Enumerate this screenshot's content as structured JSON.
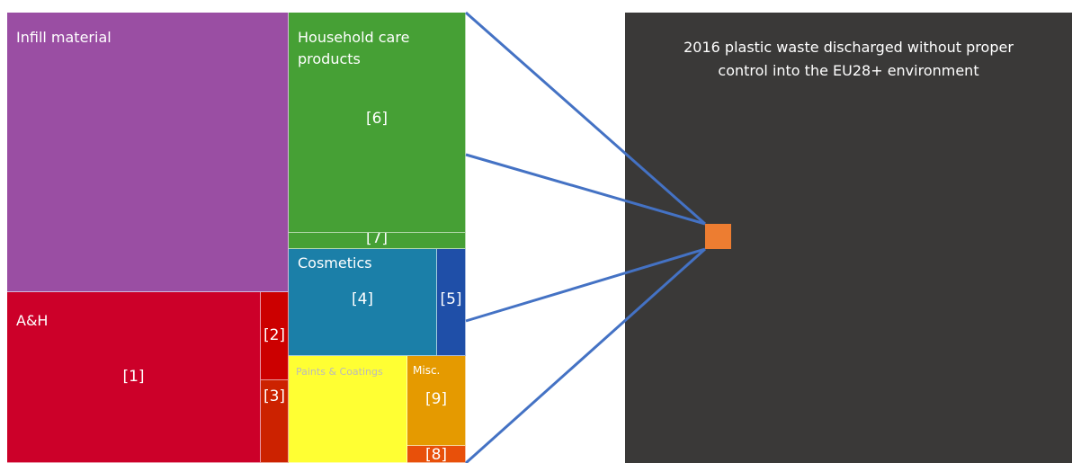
{
  "title": "2016 plastic waste discharged without proper control into the EU28+ environment",
  "nodes": [
    {
      "name": "Infill material"
    },
    {
      "name": "A&H",
      "tag": "[1]"
    },
    {
      "tag": "[2]"
    },
    {
      "tag": "[3]"
    },
    {
      "name": "Household care products",
      "tag": "[6]"
    },
    {
      "tag": "[7]"
    },
    {
      "name": "Cosmetics",
      "tag": "[4]"
    },
    {
      "tag": "[5]"
    },
    {
      "name": "Paints & Coatings"
    },
    {
      "name": "Misc.",
      "tag": "[9]"
    },
    {
      "tag": "[8]"
    }
  ]
}
